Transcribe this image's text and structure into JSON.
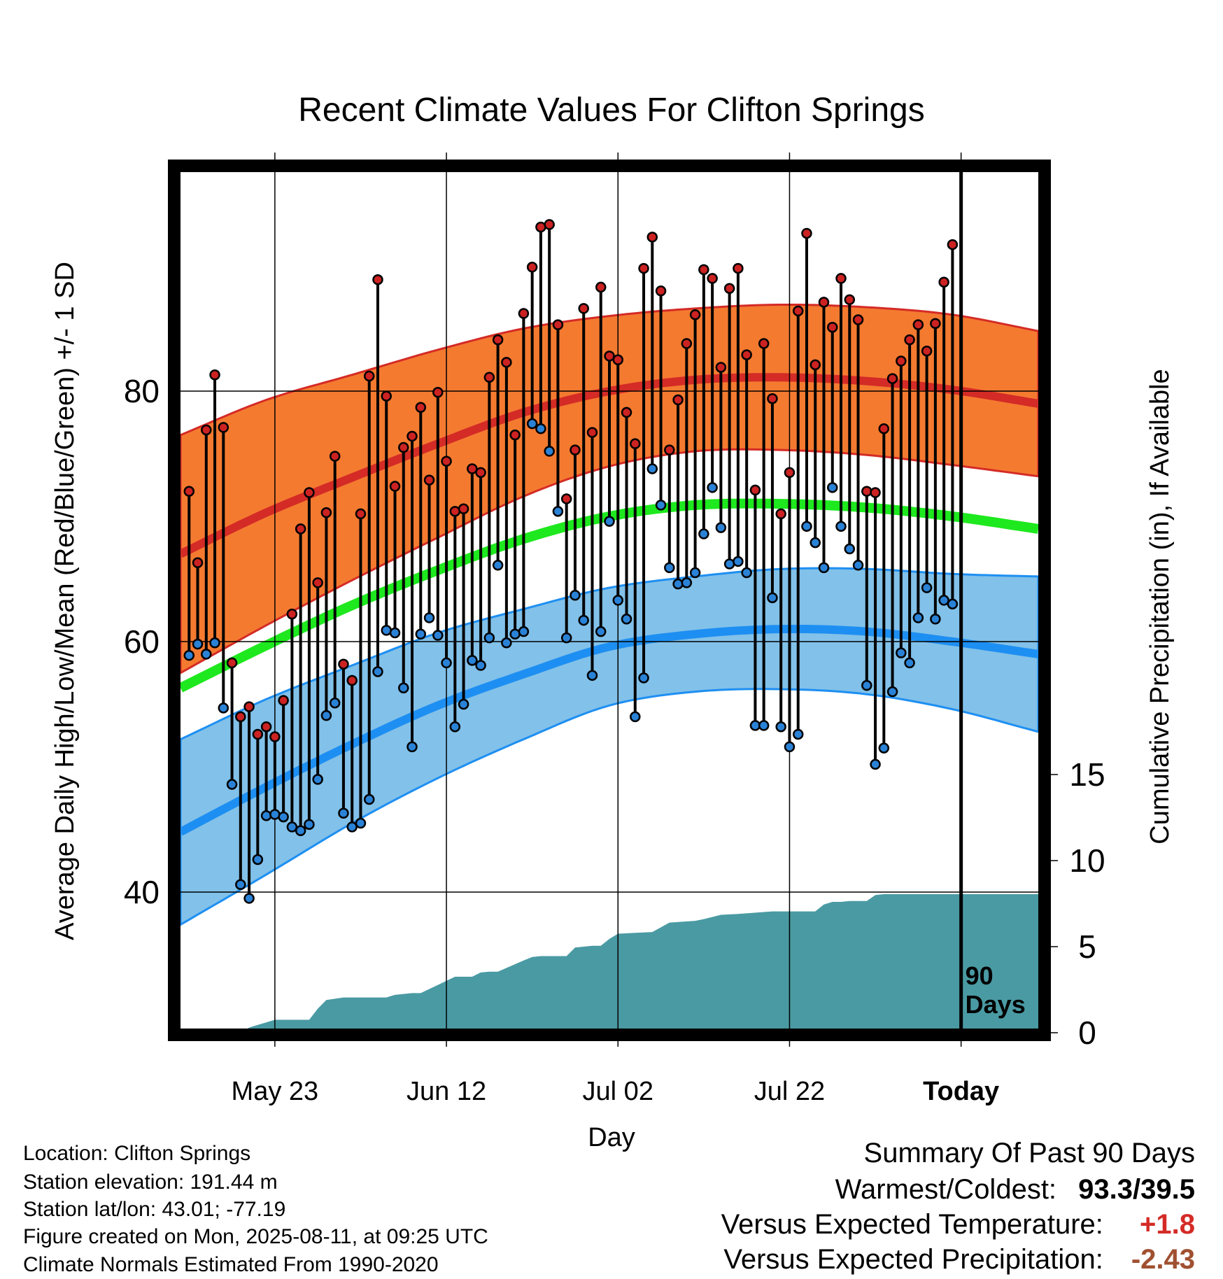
{
  "chart_data": {
    "type": "line",
    "title": "Recent Climate Values For Clifton Springs",
    "xlabel": "Day",
    "ylabel": "Average Daily High/Low/Mean (Red/Blue/Green) +/- 1 SD",
    "y2label": "Cumulative Precipitation (in), If Available",
    "x_ticks": [
      {
        "day": 11,
        "label": "May 23"
      },
      {
        "day": 31,
        "label": "Jun 12"
      },
      {
        "day": 51,
        "label": "Jul 02"
      },
      {
        "day": 71,
        "label": "Jul 22"
      },
      {
        "day": 91,
        "label": "Today"
      }
    ],
    "xlim": [
      0,
      100
    ],
    "ylim": [
      30,
      97
    ],
    "y_ticks": [
      40,
      60,
      80
    ],
    "y2lim": [
      0,
      55
    ],
    "y2_ticks": [
      0,
      5,
      10,
      15
    ],
    "marker_label_lines": [
      "90",
      "Days"
    ],
    "normals": {
      "days": [
        0,
        10,
        20,
        30,
        40,
        50,
        60,
        70,
        80,
        90,
        100
      ],
      "high_mean": [
        67,
        70.3,
        73.1,
        75.8,
        78.3,
        80,
        80.9,
        81.1,
        80.8,
        80.1,
        79
      ],
      "high_sd": [
        9.5,
        9,
        8.2,
        7.5,
        6.7,
        6,
        5.7,
        5.8,
        5.9,
        6,
        5.8
      ],
      "mean": [
        56.3,
        59.7,
        62.9,
        65.7,
        68.2,
        70,
        70.9,
        71,
        70.7,
        70,
        69
      ],
      "low_mean": [
        44.8,
        48.4,
        51.8,
        54.9,
        57.4,
        59.6,
        60.6,
        61,
        60.8,
        60,
        59
      ],
      "low_sd": [
        7.4,
        7,
        6.3,
        5.8,
        5.2,
        4.7,
        4.6,
        4.8,
        5,
        5.4,
        6.2
      ]
    },
    "series": [
      {
        "name": "High",
        "values": [
          72,
          66.3,
          76.9,
          81.3,
          77.1,
          58.3,
          54,
          54.8,
          52.6,
          53.2,
          52.4,
          55.3,
          62.2,
          69,
          71.9,
          64.7,
          70.3,
          74.8,
          58.2,
          56.9,
          70.2,
          81.2,
          88.9,
          79.6,
          72.4,
          75.5,
          76.4,
          78.7,
          72.9,
          79.9,
          74.4,
          70.4,
          70.6,
          73.8,
          73.5,
          81.1,
          84.1,
          82.3,
          76.5,
          86.2,
          89.9,
          93.1,
          93.3,
          85.3,
          71.4,
          75.3,
          86.6,
          76.7,
          88.3,
          82.8,
          82.5,
          78.3,
          75.8,
          89.8,
          92.3,
          88,
          75.3,
          79.3,
          83.8,
          86.1,
          89.7,
          89,
          81.9,
          88.2,
          89.8,
          82.9,
          72.1,
          83.8,
          79.4,
          70.2,
          73.5,
          86.4,
          92.6,
          82.1,
          87.1,
          85.1,
          89,
          87.3,
          85.7,
          72,
          71.9,
          77,
          81,
          82.4,
          84.1,
          85.3,
          83.2,
          85.4,
          88.7,
          91.7
        ]
      },
      {
        "name": "Low",
        "values": [
          58.9,
          59.8,
          59,
          59.9,
          54.7,
          48.6,
          40.6,
          39.5,
          42.6,
          46.1,
          46.2,
          46,
          45.2,
          44.9,
          45.4,
          49,
          54.1,
          55.1,
          46.3,
          45.2,
          45.5,
          47.4,
          57.6,
          60.9,
          60.7,
          56.3,
          51.6,
          60.6,
          61.9,
          60.5,
          58.3,
          53.2,
          55,
          58.5,
          58.1,
          60.3,
          66.1,
          59.9,
          60.6,
          60.8,
          77.4,
          77,
          75.2,
          70.4,
          60.3,
          63.7,
          61.7,
          57.3,
          60.8,
          69.6,
          63.3,
          61.8,
          54,
          57.1,
          73.8,
          70.9,
          65.9,
          64.6,
          64.7,
          65.5,
          68.6,
          72.3,
          69.1,
          66.2,
          66.4,
          65.5,
          53.3,
          53.3,
          63.5,
          53.2,
          51.6,
          52.6,
          69.2,
          67.9,
          65.9,
          72.3,
          69.2,
          67.4,
          66.1,
          56.5,
          50.2,
          51.5,
          56,
          59.1,
          58.3,
          61.9,
          64.3,
          61.8,
          63.3,
          63
        ]
      },
      {
        "name": "Precipitation",
        "days": [
          7,
          8,
          9,
          10,
          11,
          15,
          16,
          17,
          19,
          20,
          24,
          25,
          27,
          28,
          32,
          34,
          35,
          36,
          37,
          40,
          41,
          42,
          45,
          46,
          48,
          49,
          50,
          51,
          53,
          55,
          57,
          60,
          61,
          63,
          65,
          69,
          70,
          73,
          74,
          75,
          76,
          77,
          78,
          80,
          81,
          82,
          85,
          86,
          87,
          88,
          89,
          90,
          91,
          100
        ],
        "values": [
          0,
          0.3,
          0.45,
          0.6,
          0.75,
          0.75,
          1.4,
          1.9,
          2.05,
          2.05,
          2.05,
          2.2,
          2.3,
          2.3,
          3.25,
          3.25,
          3.5,
          3.55,
          3.55,
          4.2,
          4.4,
          4.45,
          4.45,
          4.95,
          5.05,
          5.05,
          5.45,
          5.75,
          5.8,
          5.85,
          6.4,
          6.5,
          6.6,
          6.85,
          6.9,
          7.05,
          7.05,
          7.05,
          7.05,
          7.45,
          7.6,
          7.6,
          7.65,
          7.65,
          8,
          8.05,
          8.05,
          8.05,
          8.05,
          8.05,
          8.05,
          8.05,
          8.05,
          8.05
        ]
      }
    ]
  },
  "info": {
    "location": "Location: Clifton Springs",
    "elevation": "Station elevation: 191.44 m",
    "latlon": "Station lat/lon: 43.01; -77.19",
    "created": "Figure created on Mon, 2025-08-11, at 09:25 UTC",
    "normals": "Climate Normals Estimated From 1990-2020"
  },
  "summary": {
    "title": "Summary Of Past 90 Days",
    "warm_cold_label": "Warmest/Coldest:",
    "warm_cold_value": "93.3/39.5",
    "temp_label": "Versus Expected Temperature:",
    "temp_value": "+1.8",
    "precip_label": "Versus Expected Precipitation:",
    "precip_value": "-2.43"
  },
  "colors": {
    "high_band": "#f47a30",
    "high_line": "#d42b26",
    "low_band": "#82c1e9",
    "low_line": "#1e8ff2",
    "mean_line": "#1ee81e",
    "precip_fill": "#4a9aa3",
    "high_dot": "#cc2222",
    "low_dot": "#2a82d6",
    "temp_delta": "#d42b26",
    "precip_delta": "#a05030"
  }
}
